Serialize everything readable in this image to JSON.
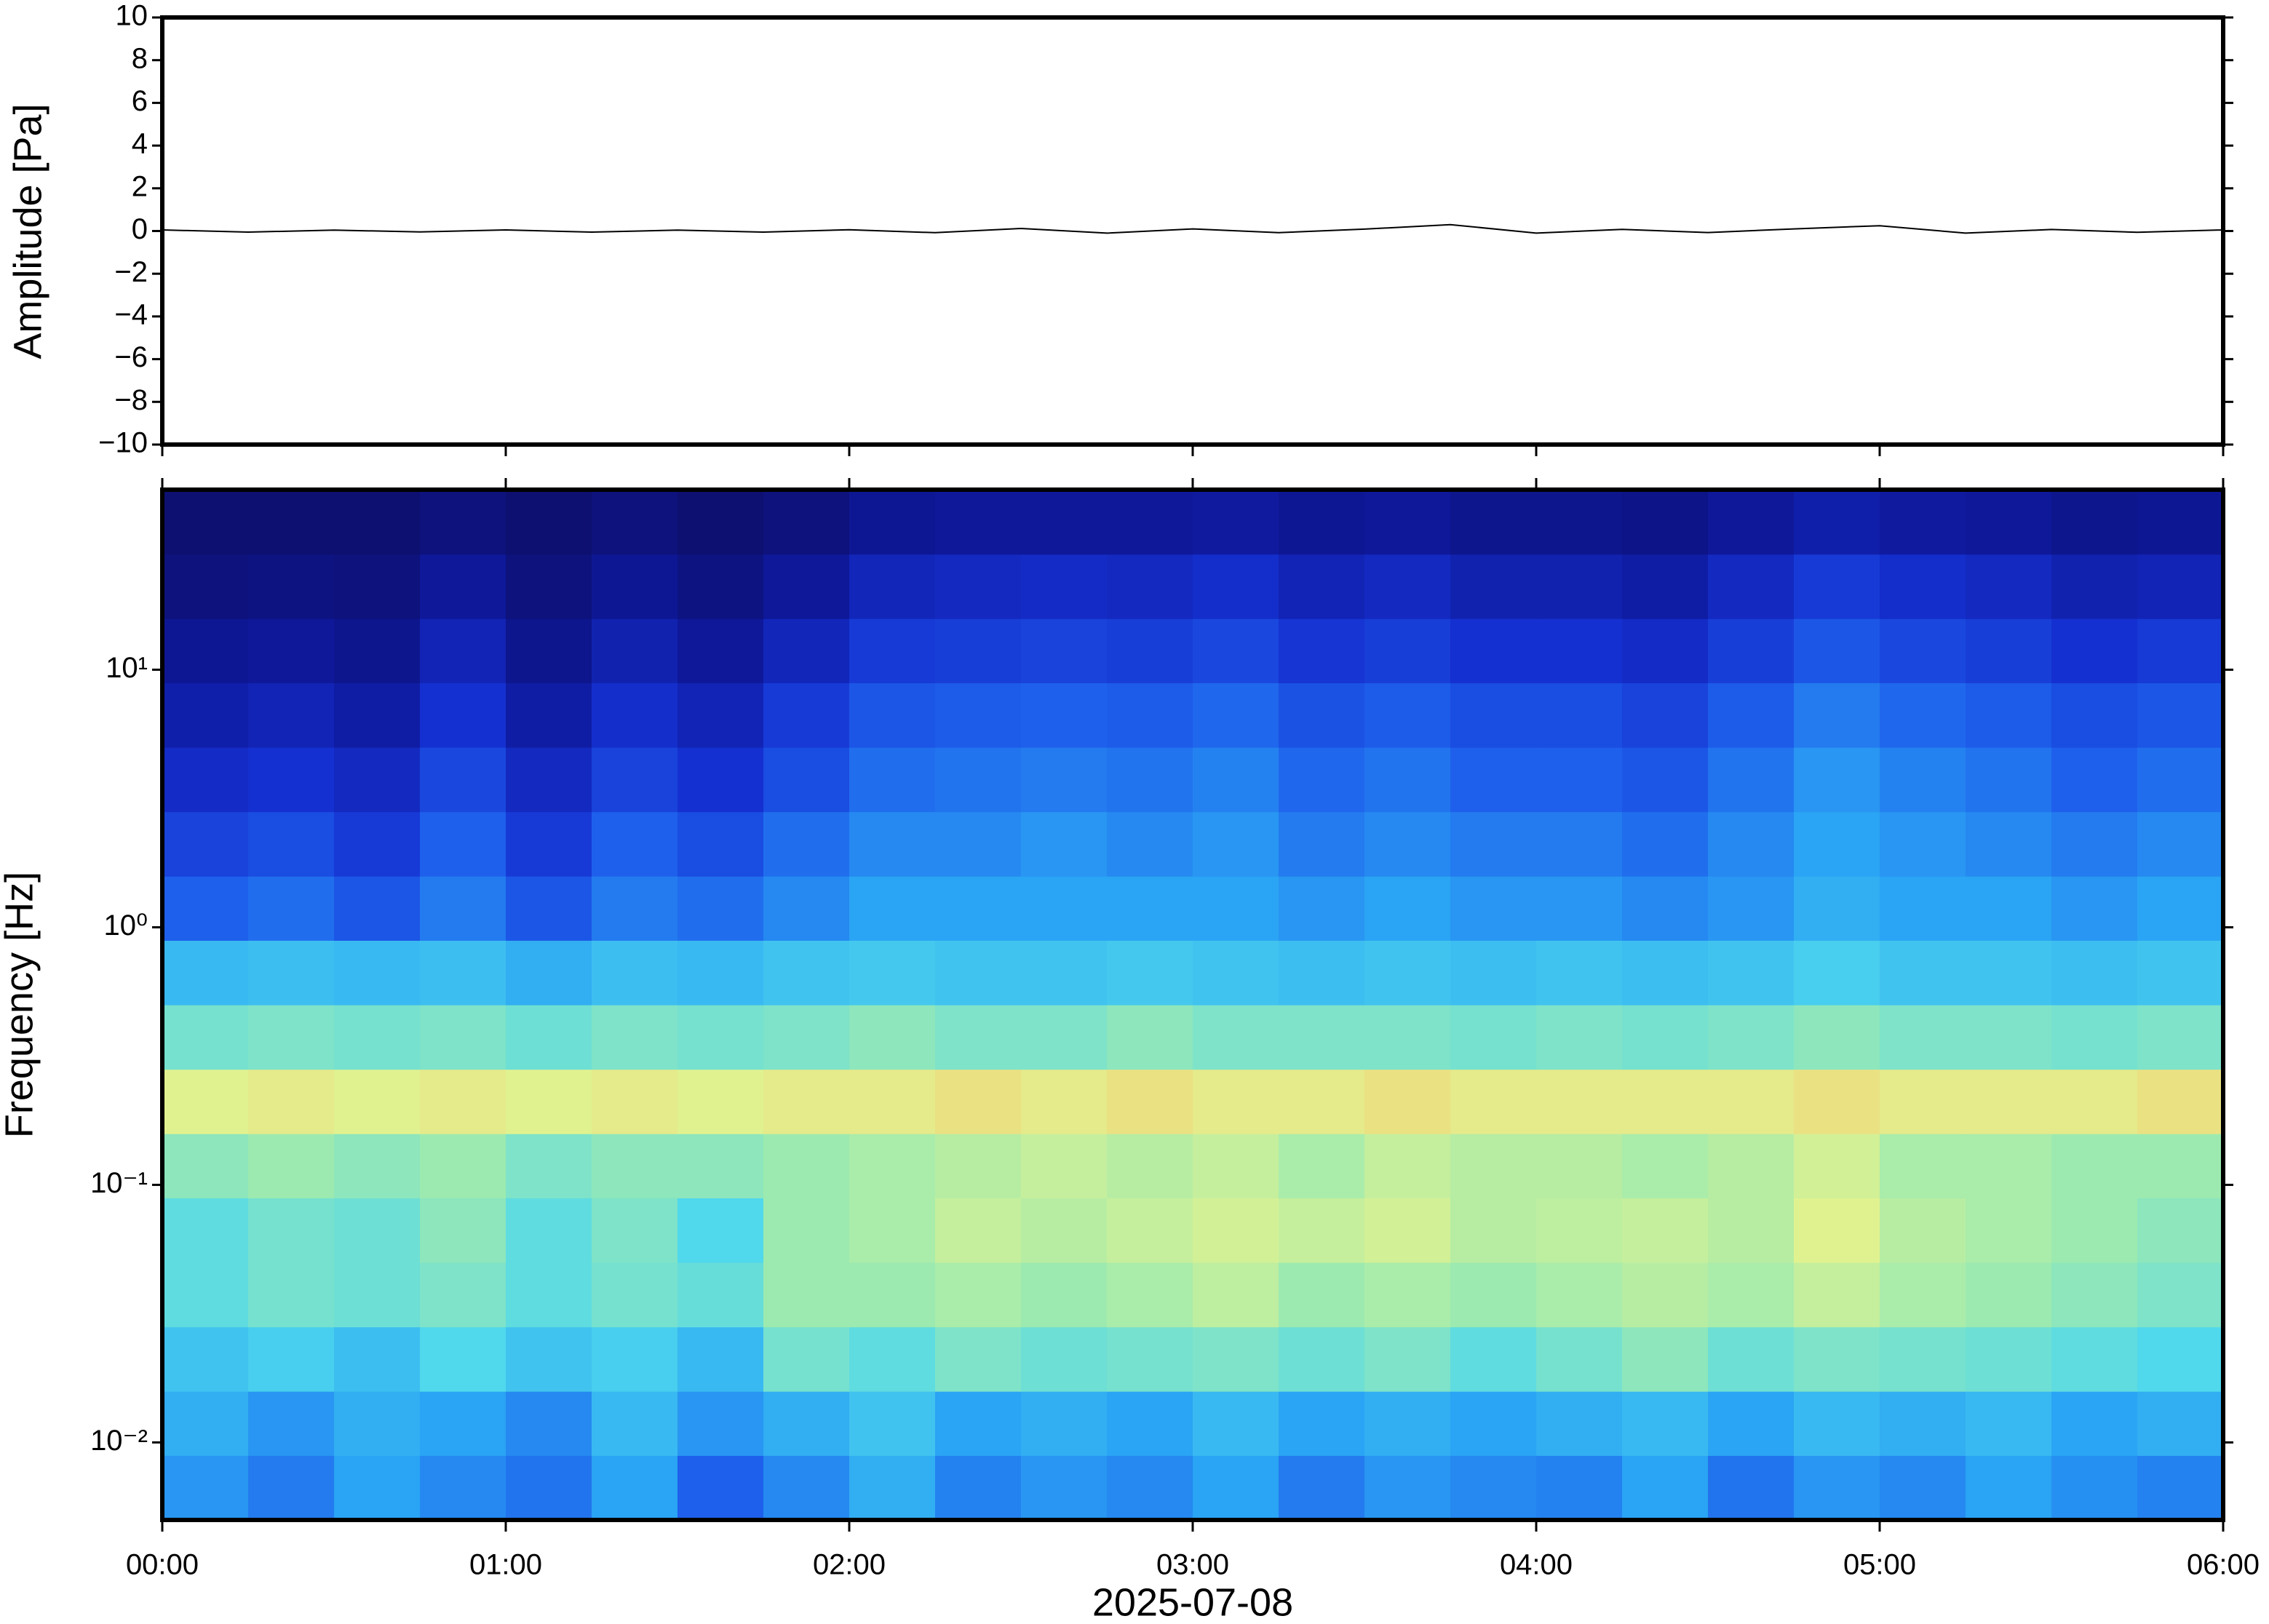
{
  "chart_data": [
    {
      "type": "line",
      "ylabel": "Amplitude [Pa]",
      "color": "#000000",
      "x": [
        0,
        0.25,
        0.5,
        0.75,
        1,
        1.25,
        1.5,
        1.75,
        2,
        2.25,
        2.5,
        2.75,
        3,
        3.25,
        3.5,
        3.75,
        4,
        4.25,
        4.5,
        4.75,
        5,
        5.25,
        5.5,
        5.75,
        6
      ],
      "values": [
        0.05,
        -0.05,
        0.04,
        -0.04,
        0.05,
        -0.05,
        0.04,
        -0.05,
        0.06,
        -0.08,
        0.12,
        -0.1,
        0.1,
        -0.08,
        0.09,
        0.3,
        -0.1,
        0.08,
        -0.07,
        0.1,
        0.25,
        -0.1,
        0.07,
        -0.06,
        0.05
      ],
      "xlim": [
        0,
        6
      ],
      "xticks": [
        0,
        1,
        2,
        3,
        4,
        5,
        6
      ],
      "ylim": [
        -10,
        10
      ],
      "yticks": [
        {
          "value": -10,
          "label": "−10"
        },
        {
          "value": -8,
          "label": "−8"
        },
        {
          "value": -6,
          "label": "−6"
        },
        {
          "value": -4,
          "label": "−4"
        },
        {
          "value": -2,
          "label": "−2"
        },
        0,
        2,
        4,
        6,
        8,
        10
      ]
    },
    {
      "type": "heatmap",
      "ylabel": "Frequency [Hz]",
      "xlabel": "2025-07-08",
      "xlim": [
        0,
        6
      ],
      "xticks": [
        {
          "value": 0,
          "label": "00:00"
        },
        {
          "value": 1,
          "label": "01:00"
        },
        {
          "value": 2,
          "label": "02:00"
        },
        {
          "value": 3,
          "label": "03:00"
        },
        {
          "value": 4,
          "label": "04:00"
        },
        {
          "value": 5,
          "label": "05:00"
        },
        {
          "value": 6,
          "label": "06:00"
        }
      ],
      "ylog": true,
      "ylim": [
        0.005,
        50
      ],
      "yticks": [
        {
          "value": 0.01,
          "label": "10⁻²"
        },
        {
          "value": 0.1,
          "label": "10⁻¹"
        },
        {
          "value": 1,
          "label": "10⁰"
        },
        {
          "value": 10,
          "label": "10¹"
        }
      ],
      "xbins": [
        0,
        0.25,
        0.5,
        0.75,
        1,
        1.25,
        1.5,
        1.75,
        2,
        2.25,
        2.5,
        2.75,
        3,
        3.25,
        3.5,
        3.75,
        4,
        4.25,
        4.5,
        4.75,
        5,
        5.25,
        5.5,
        5.75,
        6
      ],
      "ybins": [
        0.005,
        0.0089,
        0.0158,
        0.0281,
        0.05,
        0.089,
        0.158,
        0.281,
        0.5,
        0.89,
        1.58,
        2.81,
        5,
        8.9,
        15.8,
        28.1,
        50
      ],
      "zlim": [
        0,
        1
      ],
      "colormap": [
        "#0c0c5e",
        "#0e1899",
        "#1530d0",
        "#1e60ec",
        "#2aa4f4",
        "#50d8ec",
        "#9ceab0",
        "#e0f290",
        "#f8c870",
        "#f08050",
        "#c83030"
      ],
      "z": [
        [
          0.38,
          0.34,
          0.4,
          0.36,
          0.33,
          0.4,
          0.3,
          0.36,
          0.42,
          0.35,
          0.38,
          0.36,
          0.4,
          0.34,
          0.38,
          0.36,
          0.35,
          0.4,
          0.33,
          0.38,
          0.36,
          0.4,
          0.37,
          0.35
        ],
        [
          0.42,
          0.38,
          0.42,
          0.4,
          0.36,
          0.44,
          0.38,
          0.42,
          0.46,
          0.4,
          0.42,
          0.4,
          0.44,
          0.4,
          0.42,
          0.4,
          0.42,
          0.44,
          0.4,
          0.44,
          0.42,
          0.44,
          0.4,
          0.42
        ],
        [
          0.46,
          0.48,
          0.45,
          0.5,
          0.46,
          0.48,
          0.44,
          0.55,
          0.52,
          0.56,
          0.54,
          0.55,
          0.56,
          0.54,
          0.56,
          0.52,
          0.55,
          0.58,
          0.54,
          0.56,
          0.55,
          0.54,
          0.52,
          0.5
        ],
        [
          0.52,
          0.55,
          0.54,
          0.56,
          0.52,
          0.55,
          0.53,
          0.6,
          0.6,
          0.62,
          0.6,
          0.62,
          0.65,
          0.6,
          0.62,
          0.6,
          0.62,
          0.64,
          0.62,
          0.66,
          0.62,
          0.6,
          0.58,
          0.56
        ],
        [
          0.52,
          0.55,
          0.54,
          0.58,
          0.52,
          0.56,
          0.5,
          0.6,
          0.62,
          0.66,
          0.64,
          0.66,
          0.68,
          0.66,
          0.68,
          0.64,
          0.65,
          0.66,
          0.64,
          0.7,
          0.64,
          0.62,
          0.6,
          0.58
        ],
        [
          0.58,
          0.6,
          0.58,
          0.6,
          0.56,
          0.58,
          0.58,
          0.6,
          0.62,
          0.64,
          0.66,
          0.64,
          0.66,
          0.62,
          0.66,
          0.64,
          0.64,
          0.62,
          0.64,
          0.68,
          0.62,
          0.62,
          0.6,
          0.6
        ],
        [
          0.7,
          0.72,
          0.7,
          0.72,
          0.7,
          0.72,
          0.7,
          0.72,
          0.72,
          0.74,
          0.72,
          0.74,
          0.72,
          0.72,
          0.74,
          0.72,
          0.72,
          0.72,
          0.72,
          0.74,
          0.72,
          0.72,
          0.72,
          0.74
        ],
        [
          0.55,
          0.56,
          0.55,
          0.56,
          0.54,
          0.56,
          0.55,
          0.56,
          0.58,
          0.56,
          0.56,
          0.58,
          0.56,
          0.56,
          0.56,
          0.55,
          0.56,
          0.55,
          0.56,
          0.58,
          0.56,
          0.56,
          0.55,
          0.56
        ],
        [
          0.44,
          0.45,
          0.44,
          0.45,
          0.42,
          0.45,
          0.44,
          0.46,
          0.47,
          0.46,
          0.46,
          0.47,
          0.46,
          0.45,
          0.46,
          0.45,
          0.46,
          0.45,
          0.46,
          0.48,
          0.46,
          0.46,
          0.45,
          0.46
        ],
        [
          0.3,
          0.32,
          0.28,
          0.34,
          0.28,
          0.34,
          0.32,
          0.36,
          0.4,
          0.4,
          0.4,
          0.4,
          0.4,
          0.38,
          0.4,
          0.38,
          0.38,
          0.36,
          0.38,
          0.42,
          0.4,
          0.4,
          0.38,
          0.4
        ],
        [
          0.24,
          0.26,
          0.22,
          0.3,
          0.22,
          0.3,
          0.26,
          0.32,
          0.36,
          0.36,
          0.38,
          0.36,
          0.38,
          0.34,
          0.36,
          0.34,
          0.34,
          0.32,
          0.36,
          0.4,
          0.38,
          0.36,
          0.34,
          0.36
        ],
        [
          0.18,
          0.2,
          0.17,
          0.25,
          0.17,
          0.24,
          0.2,
          0.26,
          0.32,
          0.33,
          0.34,
          0.33,
          0.35,
          0.31,
          0.33,
          0.3,
          0.3,
          0.28,
          0.33,
          0.38,
          0.35,
          0.33,
          0.3,
          0.32
        ],
        [
          0.13,
          0.15,
          0.12,
          0.2,
          0.12,
          0.19,
          0.15,
          0.22,
          0.28,
          0.29,
          0.3,
          0.29,
          0.31,
          0.27,
          0.29,
          0.26,
          0.26,
          0.24,
          0.29,
          0.34,
          0.31,
          0.29,
          0.26,
          0.28
        ],
        [
          0.09,
          0.1,
          0.08,
          0.15,
          0.08,
          0.14,
          0.1,
          0.16,
          0.22,
          0.23,
          0.24,
          0.23,
          0.25,
          0.21,
          0.23,
          0.2,
          0.2,
          0.18,
          0.23,
          0.28,
          0.25,
          0.23,
          0.2,
          0.22
        ],
        [
          0.05,
          0.06,
          0.05,
          0.1,
          0.05,
          0.09,
          0.06,
          0.1,
          0.16,
          0.17,
          0.18,
          0.17,
          0.19,
          0.15,
          0.17,
          0.14,
          0.14,
          0.12,
          0.17,
          0.22,
          0.19,
          0.17,
          0.14,
          0.15
        ],
        [
          0.03,
          0.03,
          0.03,
          0.05,
          0.03,
          0.05,
          0.03,
          0.05,
          0.09,
          0.1,
          0.1,
          0.1,
          0.11,
          0.09,
          0.1,
          0.08,
          0.08,
          0.07,
          0.1,
          0.13,
          0.11,
          0.1,
          0.08,
          0.09
        ]
      ]
    }
  ]
}
